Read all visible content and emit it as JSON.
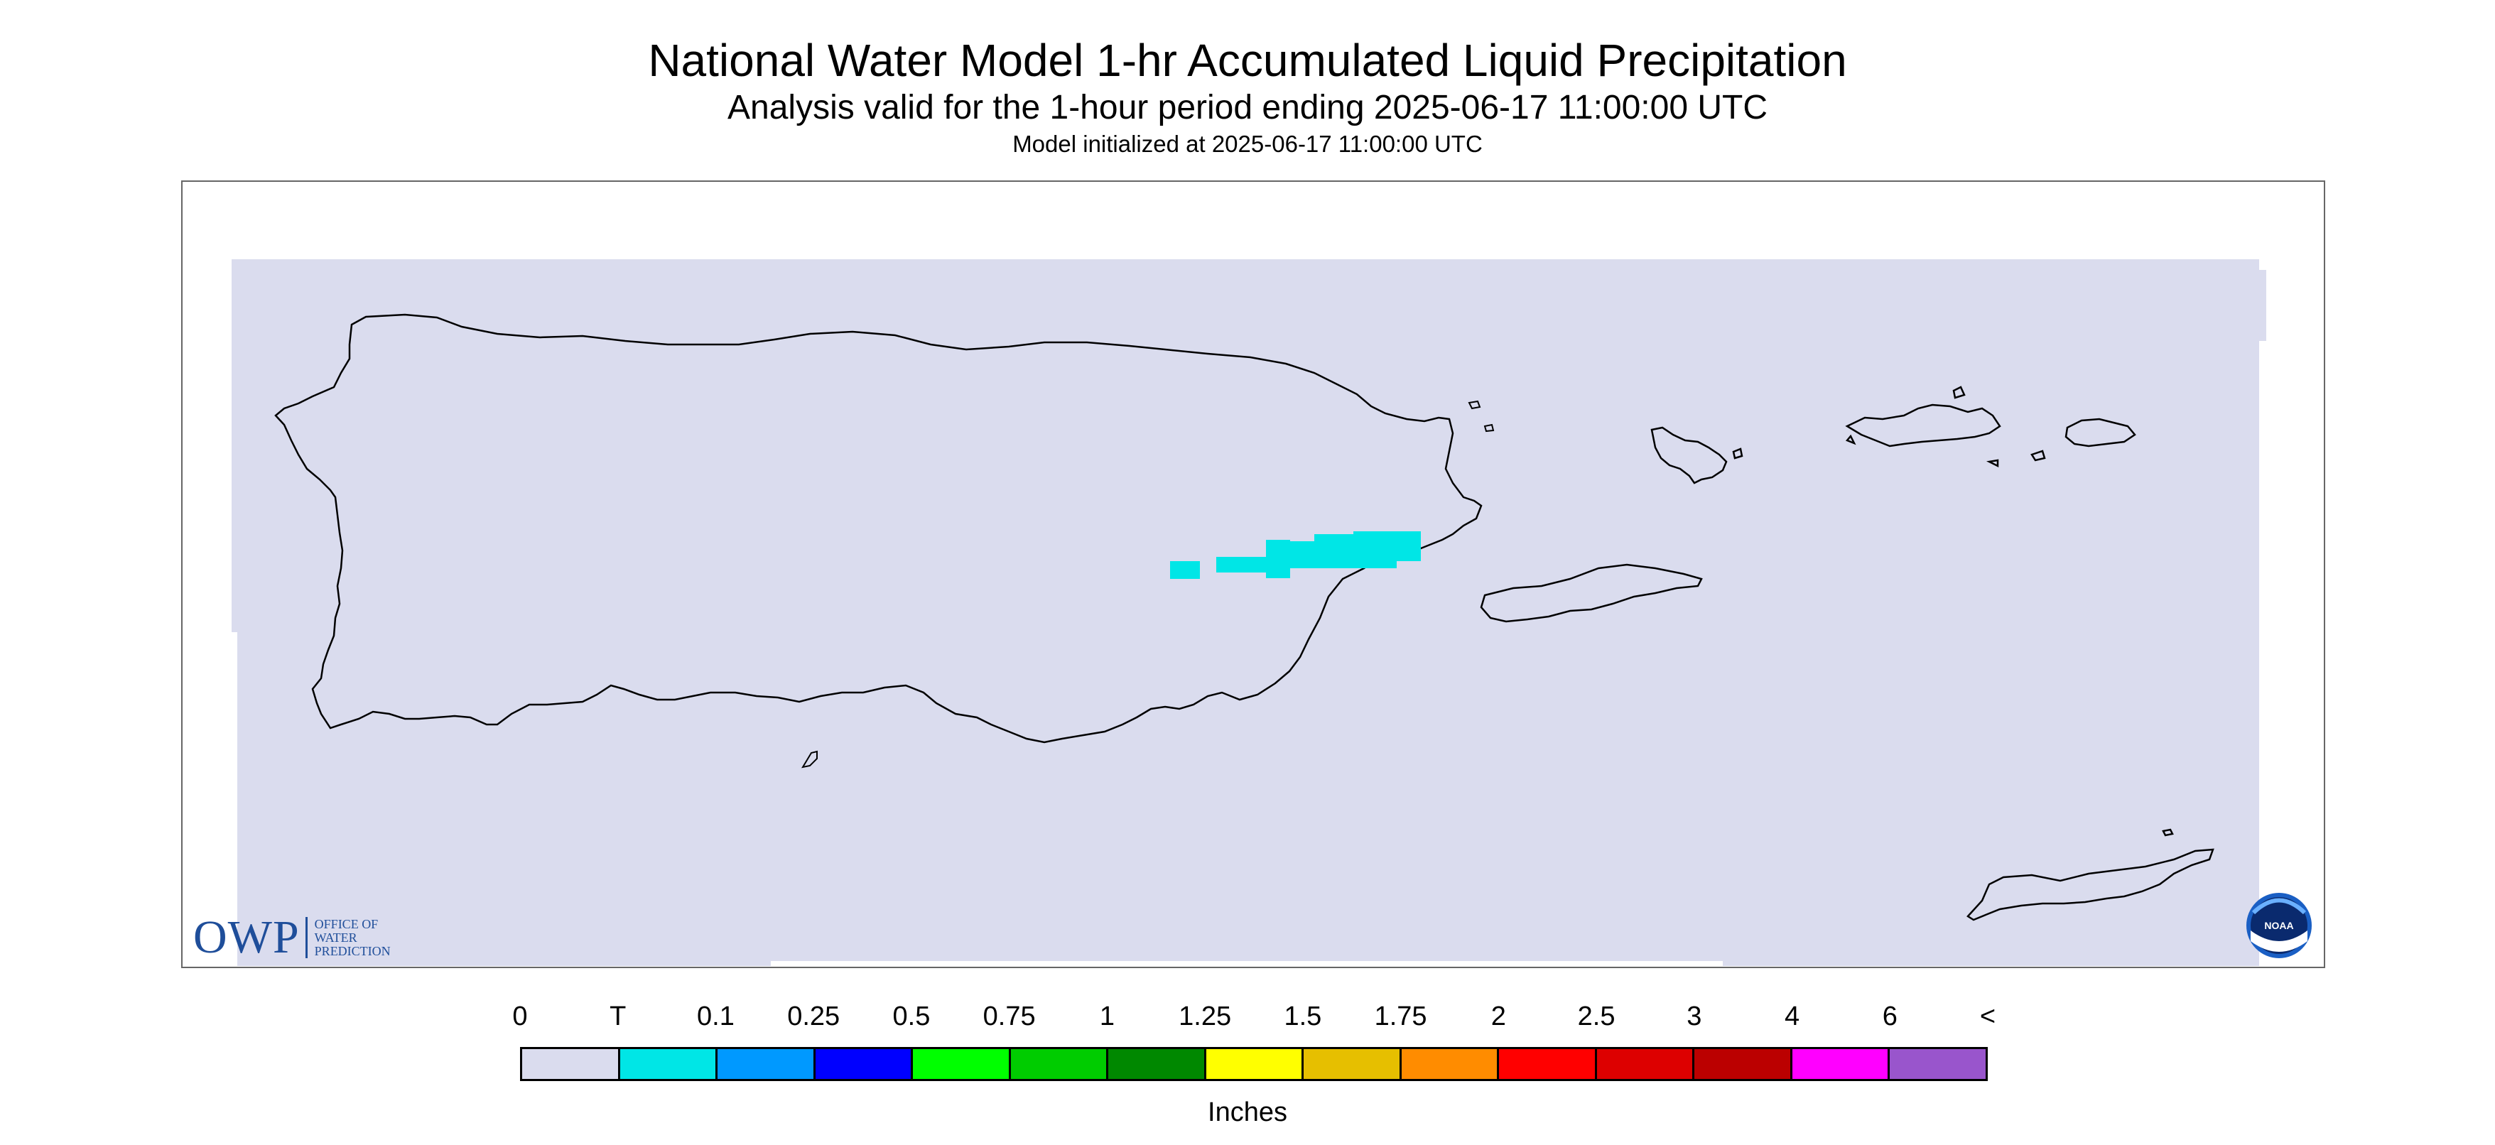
{
  "titles": {
    "main": "National Water Model 1-hr Accumulated Liquid Precipitation",
    "sub": "Analysis valid for the 1-hour period ending 2025-06-17 11:00:00 UTC",
    "init": "Model initialized at 2025-06-17 11:00:00 UTC"
  },
  "logos": {
    "owp_main": "OWP",
    "owp_line1": "OFFICE OF",
    "owp_line2": "WATER",
    "owp_line3": "PREDICTION",
    "noaa": "NOAA"
  },
  "colors": {
    "no_precip": "#dadcee",
    "trace": "#00e6e6",
    "coastline": "#000000"
  },
  "regions": {
    "islands": [
      "Puerto Rico",
      "Vieques",
      "Culebra",
      "St. Thomas",
      "St. John",
      "St. Croix"
    ],
    "precipitation_band": "trace (light cyan) over eastern Puerto Rico"
  },
  "legend": {
    "labels": [
      "0",
      "T",
      "0.1",
      "0.25",
      "0.5",
      "0.75",
      "1",
      "1.25",
      "1.5",
      "1.75",
      "2",
      "2.5",
      "3",
      "4",
      "6",
      "<"
    ],
    "colors": [
      "#dadcee",
      "#00e6e6",
      "#0099ff",
      "#0000ff",
      "#00ff00",
      "#00cc00",
      "#008800",
      "#ffff00",
      "#e6bf00",
      "#ff8c00",
      "#ff0000",
      "#dd0000",
      "#bb0000",
      "#ff00ff",
      "#9955cc"
    ],
    "units": "Inches"
  }
}
